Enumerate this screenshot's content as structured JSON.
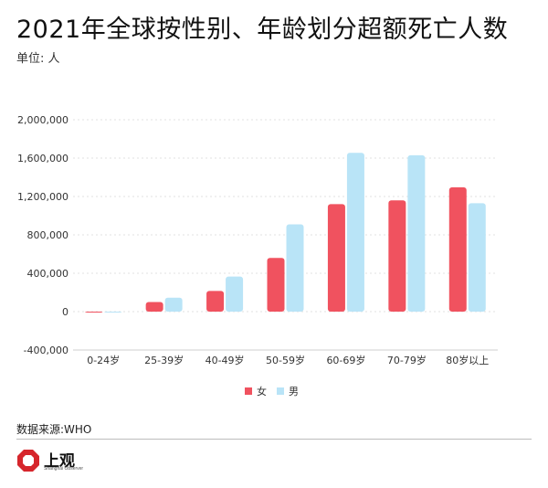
{
  "title": "2021年全球按性别、年龄划分超额死亡人数",
  "unit": "单位: 人",
  "source": "数据来源:WHO",
  "logo": {
    "text": "上观",
    "subtext": "Shanghai Observer"
  },
  "colors": {
    "female": "#f0525f",
    "male": "#b9e4f7",
    "grid": "#e0e0e0",
    "axis": "#cfcfcf"
  },
  "chart_data": {
    "type": "bar",
    "categories": [
      "0-24岁",
      "25-39岁",
      "40-49岁",
      "50-59岁",
      "60-69岁",
      "70-79岁",
      "80岁以上"
    ],
    "series": [
      {
        "name": "女",
        "values": [
          -5000,
          100000,
          215000,
          560000,
          1120000,
          1160000,
          1295000
        ]
      },
      {
        "name": "男",
        "values": [
          -5000,
          145000,
          365000,
          910000,
          1655000,
          1630000,
          1130000
        ]
      }
    ],
    "yticks": [
      "2,000,000",
      "1,600,000",
      "1,200,000",
      "800,000",
      "400,000",
      "0",
      "-400,000"
    ],
    "ytick_values": [
      2000000,
      1600000,
      1200000,
      800000,
      400000,
      0,
      -400000
    ],
    "ylim": [
      -400000,
      2000000
    ],
    "grid": true,
    "legend": "bottom"
  }
}
